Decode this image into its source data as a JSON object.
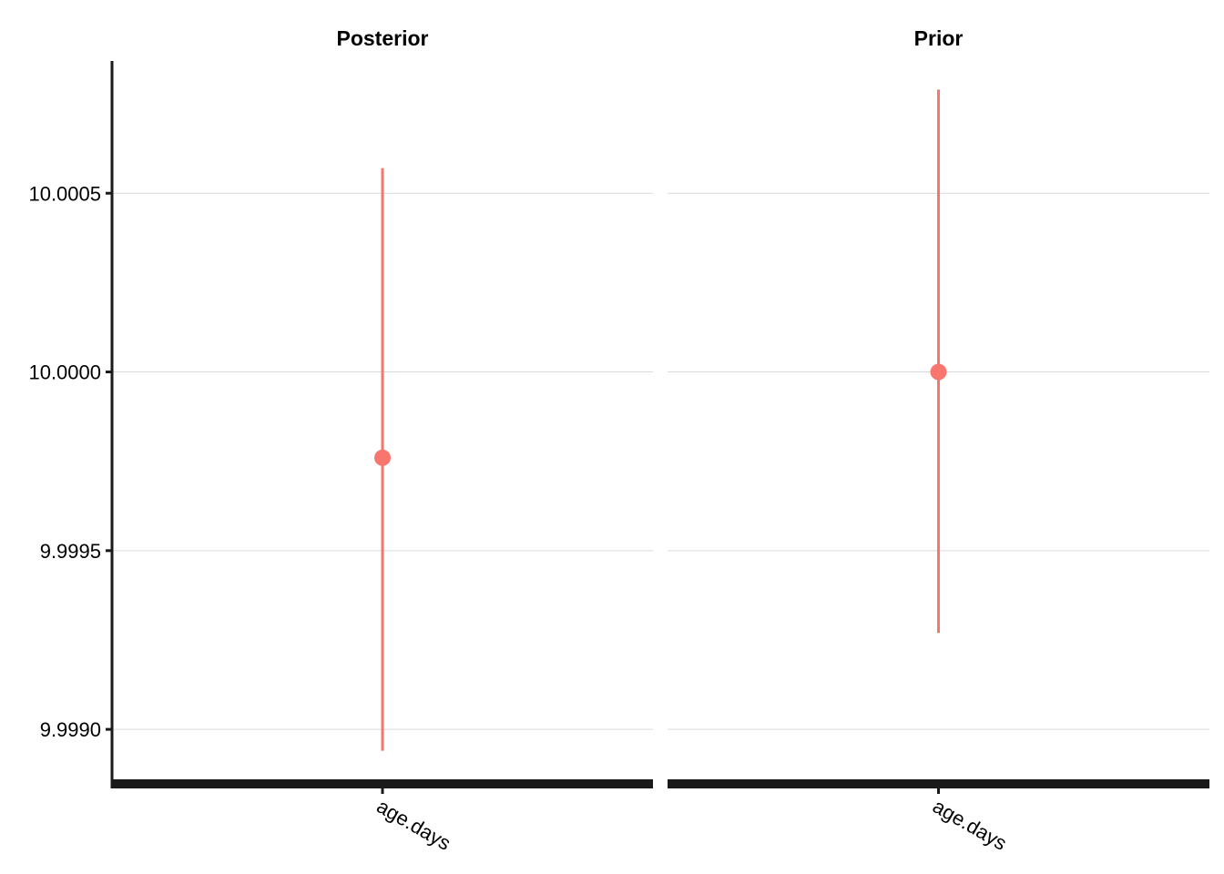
{
  "chart_data": {
    "type": "pointrange",
    "facets": [
      "Posterior",
      "Prior"
    ],
    "categories": [
      "age.days"
    ],
    "y_ticks": [
      9.999,
      9.9995,
      10.0,
      10.0005
    ],
    "y_tick_labels": [
      "9.9990",
      "9.9995",
      "10.0000",
      "10.0005"
    ],
    "ylim": [
      9.99885,
      10.00087
    ],
    "grid": "horizontal major",
    "color": "#F8766D",
    "panels": [
      {
        "facet": "Posterior",
        "category": "age.days",
        "estimate": 9.99976,
        "lower": 9.99894,
        "upper": 10.00057
      },
      {
        "facet": "Prior",
        "category": "age.days",
        "estimate": 10.0,
        "lower": 9.99927,
        "upper": 10.00079
      }
    ]
  }
}
